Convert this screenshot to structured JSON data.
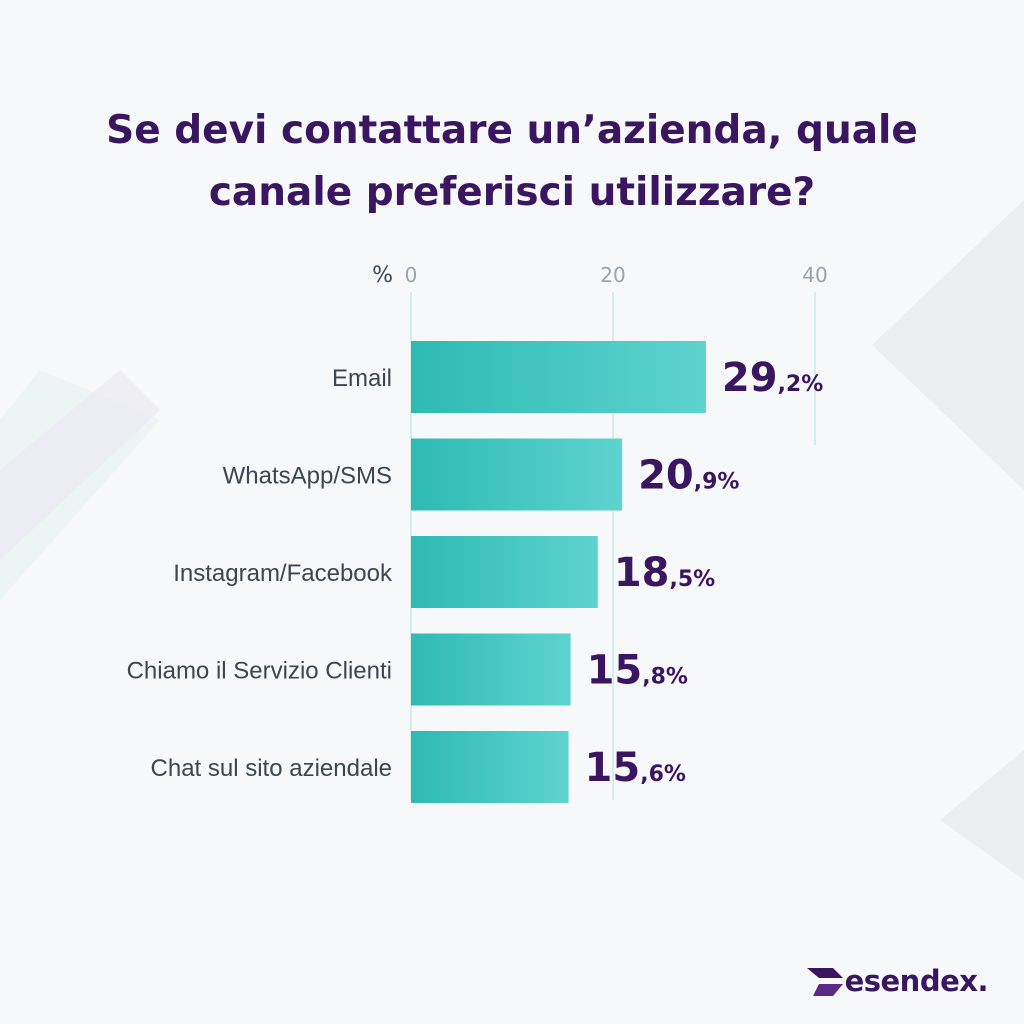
{
  "chart_data": {
    "type": "bar",
    "orientation": "horizontal",
    "title": "Se devi contattare un’azienda, quale canale preferisci utilizzare?",
    "unit_label": "%",
    "xlim": [
      0,
      40
    ],
    "x_ticks": [
      "0",
      "20",
      "40"
    ],
    "grid": true,
    "categories": [
      "Email",
      "WhatsApp/SMS",
      "Instagram/Facebook",
      "Chiamo il Servizio Clienti",
      "Chat sul sito aziendale"
    ],
    "values": [
      29.2,
      20.9,
      18.5,
      15.8,
      15.6
    ],
    "data_labels": [
      {
        "int": "29",
        "dec": ",2%"
      },
      {
        "int": "20",
        "dec": ",9%"
      },
      {
        "int": "18",
        "dec": ",5%"
      },
      {
        "int": "15",
        "dec": ",8%"
      },
      {
        "int": "15",
        "dec": ",6%"
      }
    ]
  },
  "colors": {
    "bar_start": "#2ebab3",
    "bar_end": "#5ed3cf",
    "title": "#3a1660",
    "grid": "#bde8e6"
  },
  "logo": {
    "text": "esendex",
    "suffix": "."
  }
}
